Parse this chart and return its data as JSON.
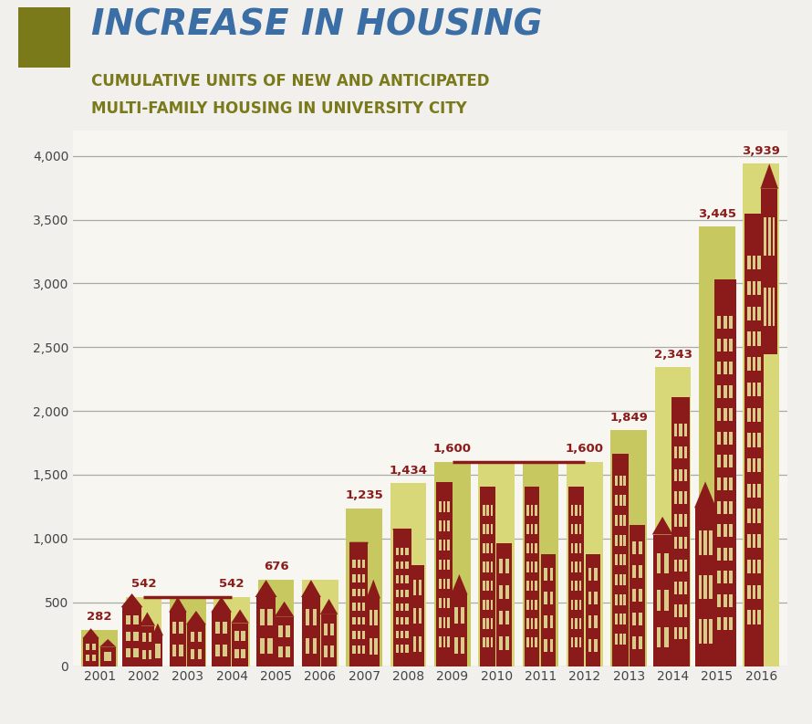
{
  "years": [
    "2001",
    "2002",
    "2003",
    "2004",
    "2005",
    "2006",
    "2007",
    "2008",
    "2009",
    "2010",
    "2011",
    "2012",
    "2013",
    "2014",
    "2015",
    "2016"
  ],
  "values": [
    282,
    542,
    542,
    542,
    676,
    676,
    1235,
    1434,
    1600,
    1600,
    1600,
    1600,
    1849,
    2343,
    3445,
    3939
  ],
  "bar_color_a": "#c8c860",
  "bar_color_b": "#d8d878",
  "building_color": "#8B1A1A",
  "window_color": "#d8cc88",
  "label_color": "#8B1A1A",
  "title_color": "#3A6EA5",
  "subtitle_color": "#7a7a1a",
  "bg_color": "#F2F0EC",
  "chart_bg": "#F8F6F0",
  "ylim": [
    0,
    4200
  ],
  "yticks": [
    0,
    500,
    1000,
    1500,
    2000,
    2500,
    3000,
    3500,
    4000
  ],
  "square_color": "#7a7a1a",
  "grid_color": "#aaaaaa",
  "title_text": "INCREASE IN HOUSING",
  "sub1": "CUMULATIVE UNITS OF NEW AND ANTICIPATED",
  "sub2": "MULTI-FAMILY HOUSING IN UNIVERSITY CITY"
}
